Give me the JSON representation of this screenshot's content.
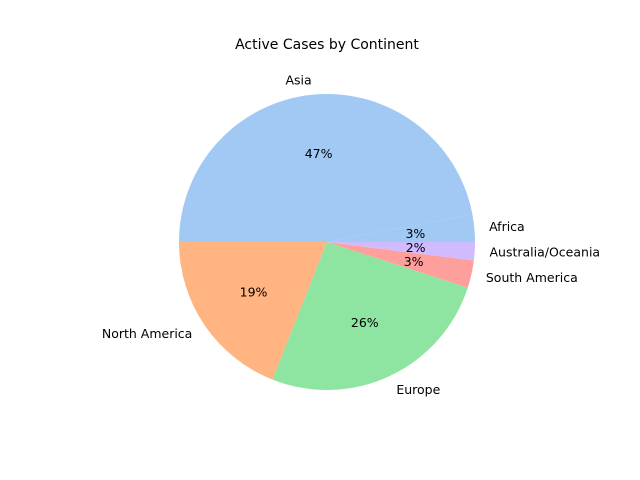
{
  "chart_data": {
    "type": "pie",
    "title": "Active Cases by Continent",
    "start_angle_deg": 0,
    "direction": "counterclockwise",
    "slices": [
      {
        "label": "Africa",
        "value": 3,
        "pct_label": "3%",
        "color": "#a1c9f4"
      },
      {
        "label": "Asia",
        "value": 47,
        "pct_label": "47%",
        "color": "#a1c9f4"
      },
      {
        "label": "North America",
        "value": 19,
        "pct_label": "19%",
        "color": "#ffb482"
      },
      {
        "label": "Europe",
        "value": 26,
        "pct_label": "26%",
        "color": "#8de5a1"
      },
      {
        "label": "South America",
        "value": 3,
        "pct_label": "3%",
        "color": "#ff9f9b"
      },
      {
        "label": "Australia/Oceania",
        "value": 2,
        "pct_label": "2%",
        "color": "#d0bbff"
      }
    ]
  }
}
